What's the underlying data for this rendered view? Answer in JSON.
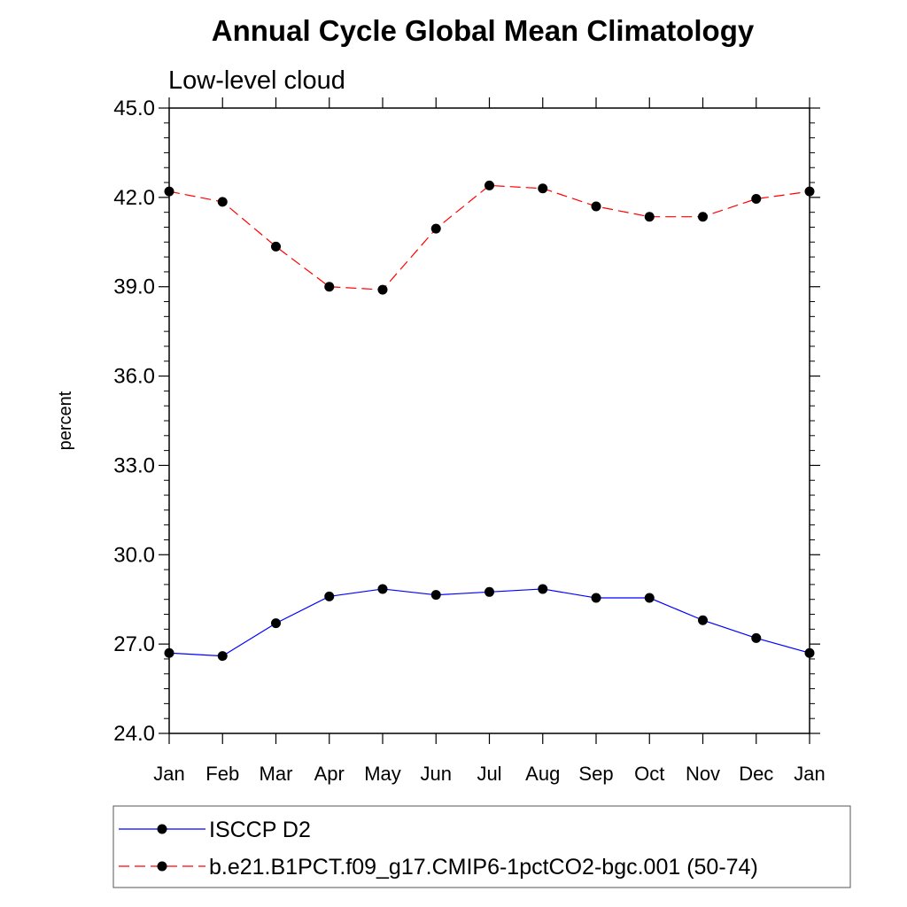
{
  "chart_data": {
    "type": "line",
    "title": "Annual Cycle Global Mean Climatology",
    "subtitle": "Low-level cloud",
    "xlabel": "",
    "ylabel": "percent",
    "categories": [
      "Jan",
      "Feb",
      "Mar",
      "Apr",
      "May",
      "Jun",
      "Jul",
      "Aug",
      "Sep",
      "Oct",
      "Nov",
      "Dec",
      "Jan"
    ],
    "ylim": [
      24.0,
      45.0
    ],
    "yticks": [
      24.0,
      27.0,
      30.0,
      33.0,
      36.0,
      39.0,
      42.0,
      45.0
    ],
    "ytick_labels": [
      "24.0",
      "27.0",
      "30.0",
      "33.0",
      "36.0",
      "39.0",
      "42.0",
      "45.0"
    ],
    "minor_ytick_step": 0.5,
    "grid": false,
    "legend_position": "bottom",
    "series": [
      {
        "name": "ISCCP D2",
        "color": "#0000ff",
        "line_style": "solid",
        "marker": "filled-circle",
        "values": [
          26.7,
          26.6,
          27.7,
          28.6,
          28.85,
          28.65,
          28.75,
          28.85,
          28.55,
          28.55,
          27.8,
          27.2,
          26.7
        ]
      },
      {
        "name": "b.e21.B1PCT.f09_g17.CMIP6-1pctCO2-bgc.001 (50-74)",
        "color": "#ff0000",
        "line_style": "dashed",
        "marker": "filled-circle",
        "values": [
          42.2,
          41.85,
          40.35,
          39.0,
          38.9,
          40.95,
          42.4,
          42.3,
          41.7,
          41.35,
          41.35,
          41.95,
          42.2
        ]
      }
    ]
  }
}
